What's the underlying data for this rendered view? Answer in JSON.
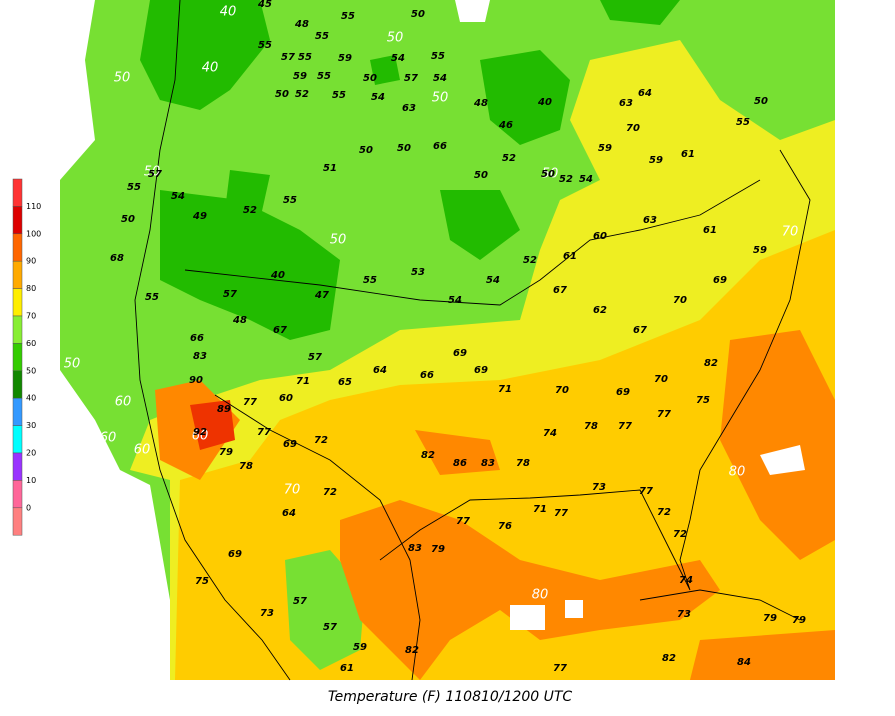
{
  "caption": "Temperature (F) 110810/1200 UTC",
  "legend": {
    "labels": [
      "110",
      "100",
      "90",
      "80",
      "70",
      "60",
      "50",
      "40",
      "30",
      "20",
      "10",
      "0"
    ],
    "colors": [
      "#ff3333",
      "#dd0000",
      "#ff6600",
      "#ffaa00",
      "#ffee00",
      "#88ee33",
      "#33cc00",
      "#118800",
      "#3399ff",
      "#00ffff",
      "#9933ff",
      "#ff6699",
      "#ff8080"
    ]
  },
  "contour_labels": [
    "40",
    "40",
    "50",
    "50",
    "50",
    "50",
    "50",
    "50",
    "50",
    "60",
    "60",
    "60",
    "60",
    "70",
    "70",
    "80",
    "80"
  ],
  "stations": [
    "55",
    "45",
    "48",
    "50",
    "55",
    "55",
    "57",
    "55",
    "59",
    "54",
    "55",
    "59",
    "55",
    "50",
    "57",
    "54",
    "50",
    "52",
    "55",
    "54",
    "63",
    "48",
    "40",
    "63",
    "64",
    "70",
    "59",
    "59",
    "61",
    "55",
    "50",
    "46",
    "52",
    "50",
    "52",
    "54",
    "50",
    "66",
    "50",
    "50",
    "51",
    "55",
    "52",
    "49",
    "54",
    "57",
    "55",
    "50",
    "68",
    "55",
    "66",
    "83",
    "90",
    "89",
    "92",
    "79",
    "78",
    "77",
    "69",
    "72",
    "72",
    "64",
    "69",
    "75",
    "73",
    "57",
    "57",
    "59",
    "61",
    "82",
    "83",
    "79",
    "77",
    "76",
    "71",
    "77",
    "73",
    "77",
    "72",
    "72",
    "74",
    "73",
    "79",
    "79",
    "84",
    "82",
    "77",
    "82",
    "86",
    "83",
    "78",
    "74",
    "78",
    "77",
    "77",
    "75",
    "82",
    "70",
    "69",
    "70",
    "71",
    "69",
    "69",
    "66",
    "64",
    "65",
    "71",
    "60",
    "77",
    "57",
    "67",
    "48",
    "57",
    "40",
    "47",
    "55",
    "53",
    "54",
    "54",
    "52",
    "67",
    "62",
    "67",
    "70",
    "69",
    "59",
    "61",
    "63",
    "60",
    "61"
  ]
}
